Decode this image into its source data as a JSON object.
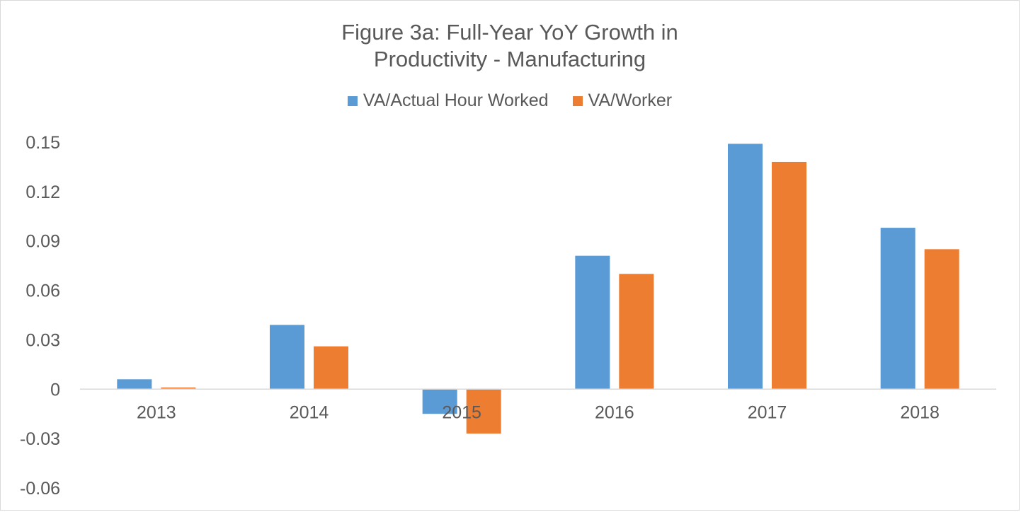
{
  "chart_data": {
    "type": "bar",
    "title_lines": [
      "Figure 3a: Full-Year YoY Growth in",
      "Productivity - Manufacturing"
    ],
    "categories": [
      "2013",
      "2014",
      "2015",
      "2016",
      "2017",
      "2018"
    ],
    "series": [
      {
        "name": "VA/Actual Hour Worked",
        "color": "#5b9bd5",
        "values": [
          0.006,
          0.039,
          -0.015,
          0.081,
          0.149,
          0.098
        ]
      },
      {
        "name": "VA/Worker",
        "color": "#ed7d31",
        "values": [
          0.001,
          0.026,
          -0.027,
          0.07,
          0.138,
          0.085
        ]
      }
    ],
    "y_ticks": [
      "0.15",
      "0.12",
      "0.09",
      "0.06",
      "0.03",
      "0",
      "-0.03",
      "-0.06"
    ],
    "ylim": [
      -0.06,
      0.15
    ],
    "legend_position": "top",
    "grid": false
  }
}
